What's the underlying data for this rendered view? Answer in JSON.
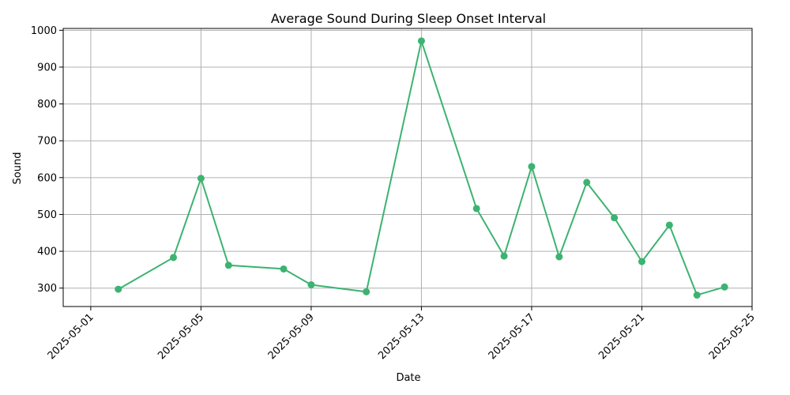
{
  "chart_data": {
    "type": "line",
    "title": "Average Sound During Sleep Onset Interval",
    "xlabel": "Date",
    "ylabel": "Sound",
    "grid": true,
    "line_color": "#3cb371",
    "x_ticks": [
      "2025-05-01",
      "2025-05-05",
      "2025-05-09",
      "2025-05-13",
      "2025-05-17",
      "2025-05-21",
      "2025-05-25"
    ],
    "y_ticks": [
      300,
      400,
      500,
      600,
      700,
      800,
      900,
      1000
    ],
    "xlim": [
      "2025-04-30",
      "2025-05-25"
    ],
    "ylim": [
      250,
      1005
    ],
    "series": [
      {
        "x": [
          "2025-05-02",
          "2025-05-04",
          "2025-05-05",
          "2025-05-06",
          "2025-05-08",
          "2025-05-09",
          "2025-05-11",
          "2025-05-13",
          "2025-05-15",
          "2025-05-16",
          "2025-05-17",
          "2025-05-18",
          "2025-05-19",
          "2025-05-20",
          "2025-05-21",
          "2025-05-22",
          "2025-05-23",
          "2025-05-24"
        ],
        "values": [
          297,
          383,
          598,
          362,
          352,
          309,
          290,
          971,
          516,
          387,
          630,
          385,
          587,
          491,
          372,
          471,
          281,
          303
        ]
      }
    ]
  }
}
